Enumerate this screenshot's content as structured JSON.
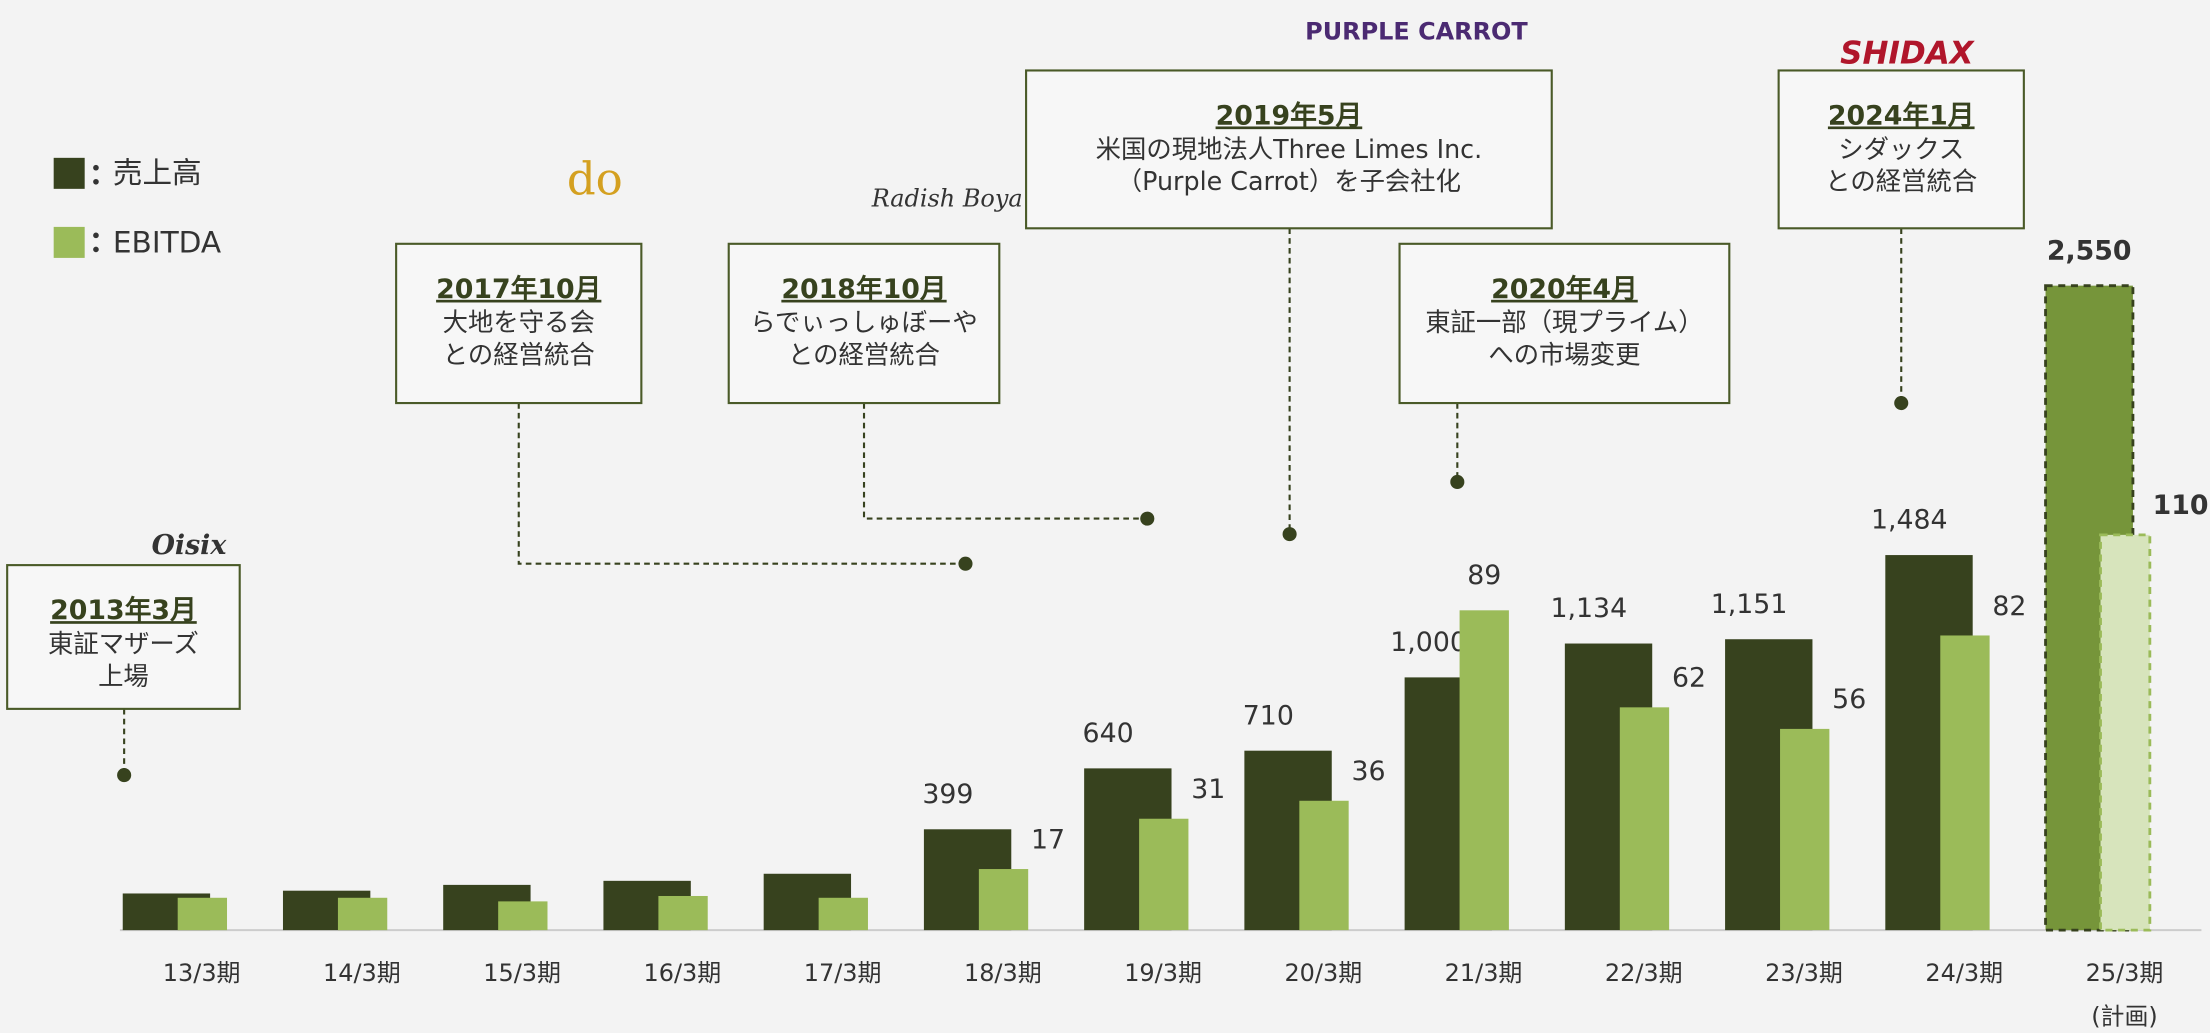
{
  "chart_data": {
    "type": "bar",
    "categories": [
      "13/3期",
      "14/3期",
      "15/3期",
      "16/3期",
      "17/3期",
      "18/3期",
      "19/3期",
      "20/3期",
      "21/3期",
      "22/3期",
      "23/3期",
      "24/3期",
      "25/3期"
    ],
    "forecast_note": "(計画)",
    "ylim": [
      0,
      3000
    ],
    "y2lim": [
      0,
      211
    ],
    "series": [
      {
        "name": "売上高",
        "color": "#37421e",
        "forecast_color": "#76953a",
        "values": [
          145,
          156,
          179,
          195,
          223,
          399,
          640,
          710,
          1000,
          1134,
          1151,
          1484,
          2550
        ],
        "value_labels": [
          null,
          null,
          null,
          null,
          null,
          "399",
          "640",
          "710",
          "1,000",
          "1,134",
          "1,151",
          "1,484",
          "2,550"
        ]
      },
      {
        "name": "EBITDA",
        "color": "#9bbb59",
        "forecast_color": "#d7e4bc",
        "axis": "y2",
        "values": [
          9,
          9,
          8,
          9.5,
          9,
          17,
          31,
          36,
          89,
          62,
          56,
          82,
          110
        ],
        "value_labels": [
          null,
          null,
          null,
          null,
          null,
          "17",
          "31",
          "36",
          "89",
          "62",
          "56",
          "82",
          "110"
        ]
      }
    ],
    "legend": "upper left",
    "annotations": [
      {
        "date": "2013年3月",
        "lines": [
          "東証マザーズ",
          "上場"
        ],
        "logo": "Oisix"
      },
      {
        "date": "2017年10月",
        "lines": [
          "大地を守る会",
          "との経営統合"
        ],
        "logo": "do"
      },
      {
        "date": "2018年10月",
        "lines": [
          "らでぃっしゅぼーや",
          "との経営統合"
        ],
        "logo": "Radish Boya"
      },
      {
        "date": "2019年5月",
        "lines": [
          "米国の現地法人Three Limes Inc.",
          "（Purple Carrot）を子会社化"
        ],
        "logo": "PURPLE CARROT"
      },
      {
        "date": "2020年4月",
        "lines": [
          "東証一部（現プライム）",
          "への市場変更"
        ],
        "logo": null
      },
      {
        "date": "2024年1月",
        "lines": [
          "シダックス",
          "との経営統合"
        ],
        "logo": "SHIDAX"
      }
    ]
  }
}
